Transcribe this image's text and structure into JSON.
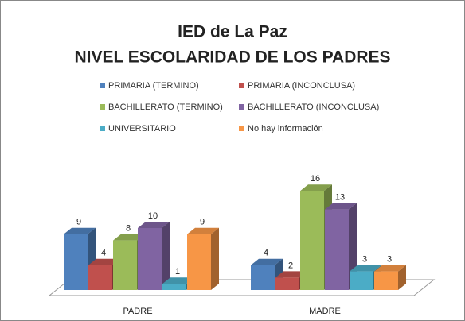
{
  "chart_data": {
    "type": "bar3d",
    "title": "IED de La Paz",
    "subtitle": "NIVEL ESCOLARIDAD DE LOS PADRES",
    "categories": [
      "PADRE",
      "MADRE"
    ],
    "series": [
      {
        "name": "PRIMARIA (TERMINO)",
        "color": "#4f81bd",
        "values": [
          9,
          4
        ]
      },
      {
        "name": "PRIMARIA (INCONCLUSA)",
        "color": "#c0504d",
        "values": [
          4,
          2
        ]
      },
      {
        "name": "BACHILLERATO (TERMINO)",
        "color": "#9bbb59",
        "values": [
          8,
          16
        ]
      },
      {
        "name": "BACHILLERATO (INCONCLUSA)",
        "color": "#8064a2",
        "values": [
          10,
          13
        ]
      },
      {
        "name": "UNIVERSITARIO",
        "color": "#4bacc6",
        "values": [
          1,
          3
        ]
      },
      {
        "name": "No hay información",
        "color": "#f79646",
        "values": [
          9,
          3
        ]
      }
    ],
    "legend": "top"
  }
}
